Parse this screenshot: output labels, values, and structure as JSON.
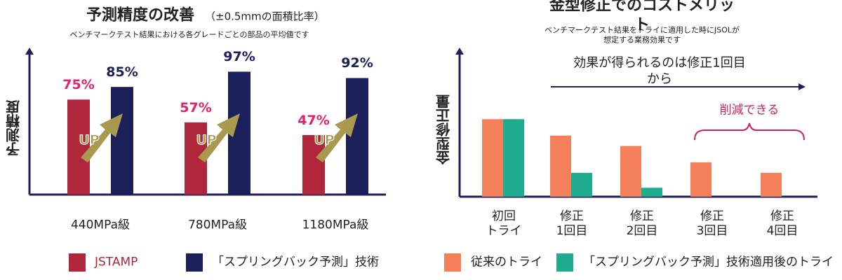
{
  "chart_data": [
    {
      "type": "bar",
      "title": "予測精度の改善",
      "title_suffix": "（±0.5mmの面積比率）",
      "subtitle": "ベンチマークテスト結果における各グレードごとの部品の平均値です",
      "y_label": "予測精度",
      "categories": [
        "440MPa級",
        "780MPa級",
        "1180MPa級"
      ],
      "ylim": [
        0,
        100
      ],
      "series": [
        {
          "name": "JSTAMP",
          "color": "#b0263a",
          "label_color": "#e3206c",
          "values": [
            75,
            57,
            47
          ],
          "value_labels": [
            "75%",
            "57%",
            "47%"
          ]
        },
        {
          "name": "「スプリングバック予測」技術",
          "color": "#1b1f5a",
          "label_color": "#1b1f5a",
          "values": [
            85,
            97,
            92
          ],
          "value_labels": [
            "85%",
            "97%",
            "92%"
          ]
        }
      ],
      "annotations": [
        "UP",
        "UP",
        "UP"
      ]
    },
    {
      "type": "bar",
      "title": "金型修正でのコストメリット",
      "subtitle": "ベンチマークテスト結果をトライに適用した時にJSOLが想定する業務効果です",
      "y_label": "金型修正量",
      "categories": [
        "初回\nトライ",
        "修正\n1回目",
        "修正\n2回目",
        "修正\n3回目",
        "修正\n4回目"
      ],
      "ylim": [
        0,
        100
      ],
      "series": [
        {
          "name": "従来のトライ",
          "color": "#f47f5b",
          "values": [
            52,
            41,
            34,
            23,
            16
          ]
        },
        {
          "name": "「スプリングバック予測」技術適用後のトライ",
          "color": "#1fab8e",
          "values": [
            52,
            16,
            6,
            null,
            null
          ]
        }
      ],
      "annotations": [
        "効果が得られるのは修正1回目から",
        "削減できる"
      ]
    }
  ]
}
